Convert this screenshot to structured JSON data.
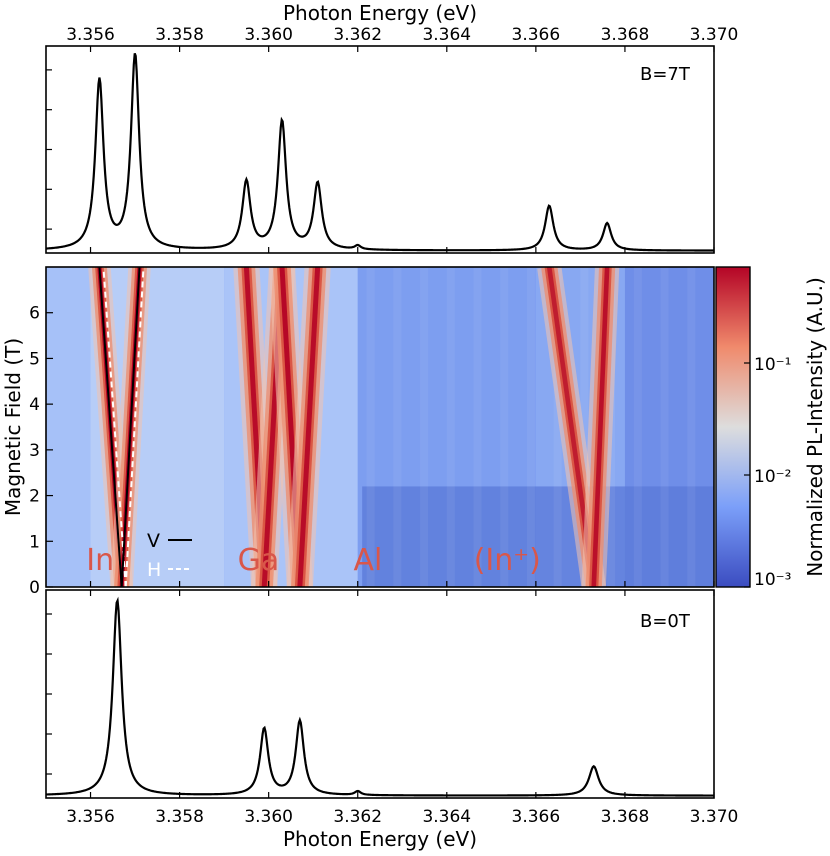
{
  "chart_data": [
    {
      "type": "line",
      "panel": "top",
      "panel_label": "B=7T",
      "title": "Photon Energy (eV)",
      "xlim": [
        3.355,
        3.37
      ],
      "x_ticks": [
        "3.356",
        "3.358",
        "3.360",
        "3.362",
        "3.364",
        "3.366",
        "3.368",
        "3.370"
      ],
      "peaks": [
        {
          "x": 3.3562,
          "y": 0.87,
          "w": 0.00011
        },
        {
          "x": 3.357,
          "y": 1.0,
          "w": 0.00011
        },
        {
          "x": 3.3595,
          "y": 0.35,
          "w": 0.00011
        },
        {
          "x": 3.3603,
          "y": 0.66,
          "w": 0.00011
        },
        {
          "x": 3.3611,
          "y": 0.34,
          "w": 0.00011
        },
        {
          "x": 3.362,
          "y": 0.02,
          "w": 8e-05
        },
        {
          "x": 3.3663,
          "y": 0.23,
          "w": 0.00011
        },
        {
          "x": 3.3676,
          "y": 0.14,
          "w": 0.00011
        }
      ]
    },
    {
      "type": "heatmap",
      "panel": "middle",
      "xlabel": "Photon Energy (eV)",
      "ylabel": "Magnetic Field (T)",
      "xlim": [
        3.355,
        3.37
      ],
      "ylim": [
        0,
        7
      ],
      "y_ticks": [
        "0",
        "1",
        "2",
        "3",
        "4",
        "5",
        "6"
      ],
      "colorbar": {
        "label": "Normalized PL-Intensity (A.U.)",
        "scale": "log",
        "ticks": [
          "10⁻³",
          "10⁻²",
          "10⁻¹"
        ]
      },
      "lines": [
        {
          "e0": 3.3567,
          "e7": 3.3562,
          "w": 0.00012,
          "a": 1.0
        },
        {
          "e0": 3.3567,
          "e7": 3.3571,
          "w": 0.00012,
          "a": 1.0
        },
        {
          "e0": 3.3599,
          "e7": 3.3595,
          "w": 0.00014,
          "a": 0.9
        },
        {
          "e0": 3.3599,
          "e7": 3.3603,
          "w": 0.00014,
          "a": 0.9
        },
        {
          "e0": 3.3607,
          "e7": 3.3603,
          "w": 0.00014,
          "a": 0.95
        },
        {
          "e0": 3.3607,
          "e7": 3.3611,
          "w": 0.00014,
          "a": 0.9
        },
        {
          "e0": 3.3673,
          "e7": 3.3663,
          "w": 0.00013,
          "a": 0.7
        },
        {
          "e0": 3.3673,
          "e7": 3.3676,
          "w": 0.00013,
          "a": 0.85
        }
      ],
      "dashed_fits": [
        {
          "e0": 3.3567,
          "e7": 3.3562
        },
        {
          "e0": 3.3567,
          "e7": 3.3571
        }
      ],
      "element_labels": [
        {
          "text": "In",
          "x": 3.3555
        },
        {
          "text": "Ga",
          "x": 3.3589
        },
        {
          "text": "Al",
          "x": 3.3615
        },
        {
          "text": "(In⁺)",
          "x": 3.3642
        }
      ],
      "legend": [
        {
          "label": "V",
          "style": "solid",
          "color": "#000000"
        },
        {
          "label": "H",
          "style": "dashed",
          "color": "#ffffff"
        }
      ]
    },
    {
      "type": "line",
      "panel": "bottom",
      "panel_label": "B=0T",
      "xlabel": "Photon Energy (eV)",
      "xlim": [
        3.355,
        3.37
      ],
      "x_ticks": [
        "3.356",
        "3.358",
        "3.360",
        "3.362",
        "3.364",
        "3.366",
        "3.368",
        "3.370"
      ],
      "peaks": [
        {
          "x": 3.3566,
          "y": 1.0,
          "w": 0.00012
        },
        {
          "x": 3.3599,
          "y": 0.34,
          "w": 0.00011
        },
        {
          "x": 3.3607,
          "y": 0.38,
          "w": 0.00011
        },
        {
          "x": 3.362,
          "y": 0.02,
          "w": 8e-05
        },
        {
          "x": 3.3673,
          "y": 0.15,
          "w": 0.00013
        }
      ]
    }
  ]
}
